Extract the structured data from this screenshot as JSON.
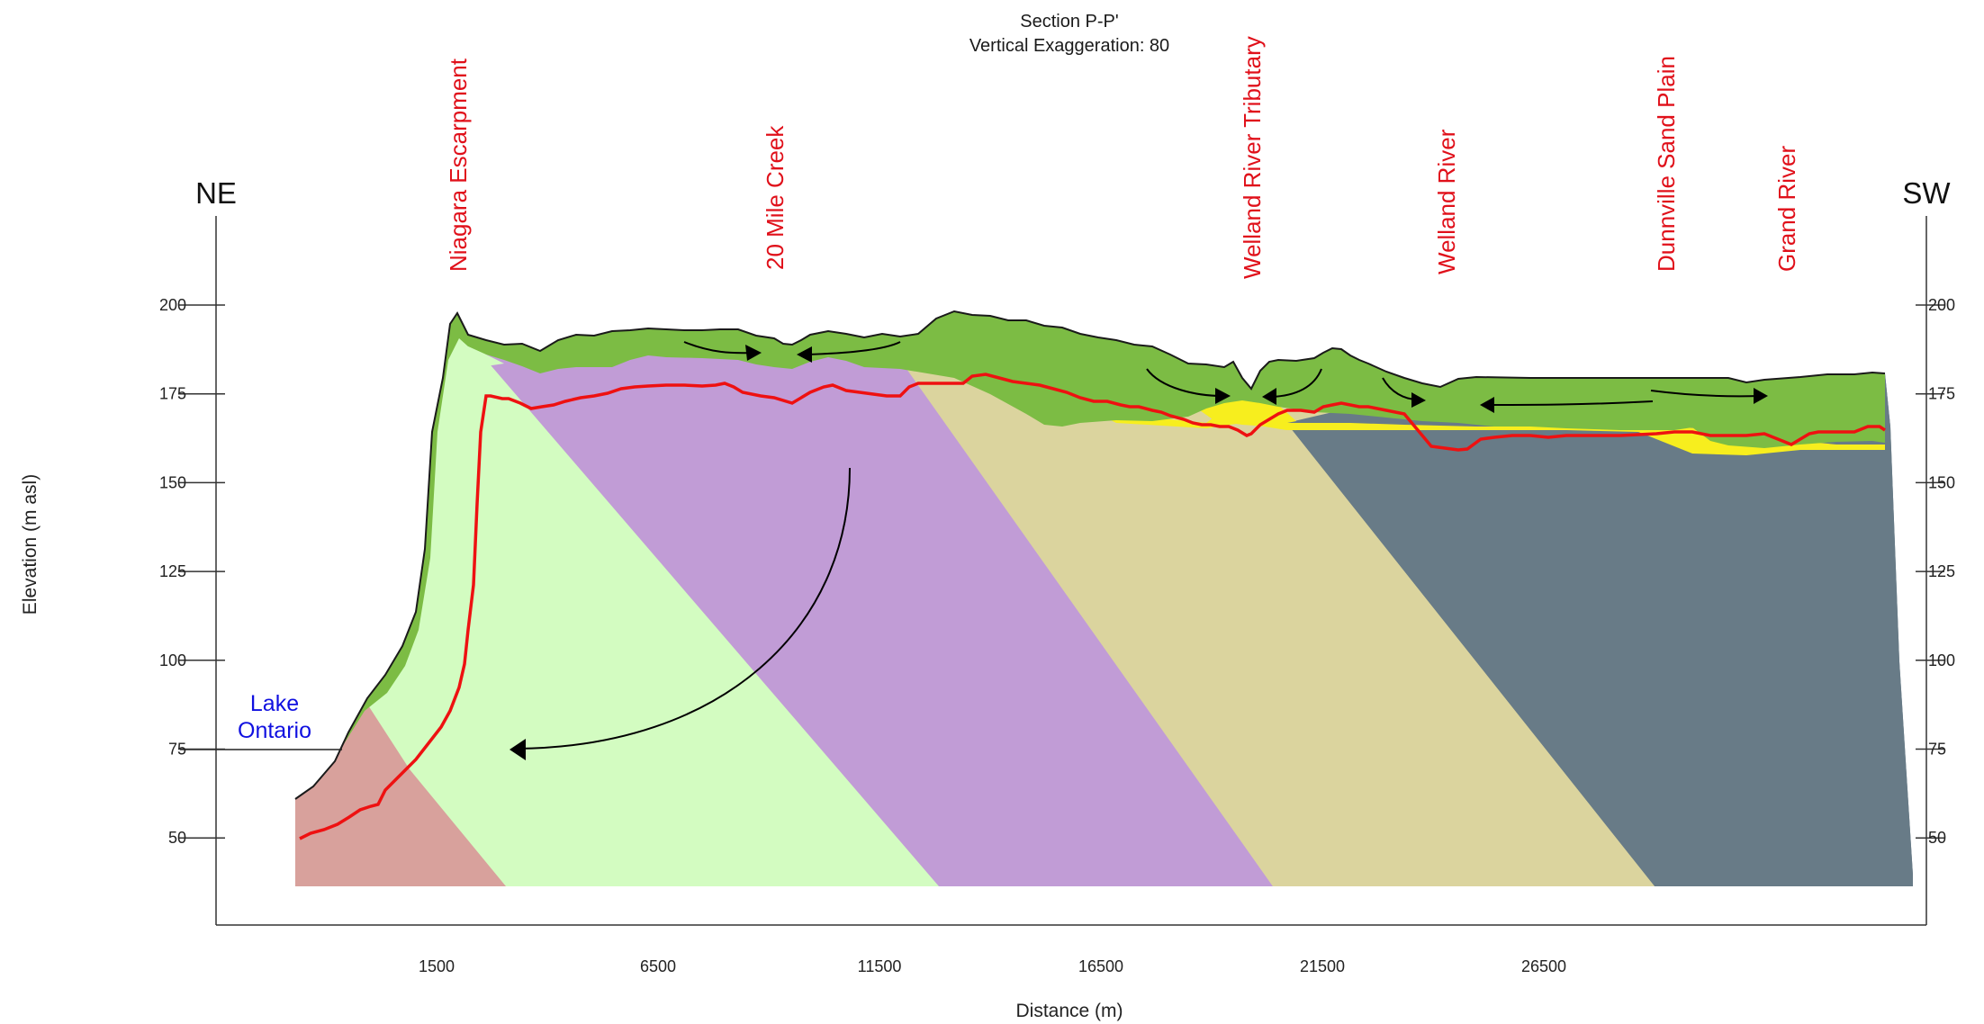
{
  "title": {
    "line1": "Section P-P'",
    "line2": "Vertical Exaggeration: 80"
  },
  "ends": {
    "left": "NE",
    "right": "SW"
  },
  "axes": {
    "y_label": "Elevation (m asl)",
    "x_label": "Distance (m)",
    "y_ticks": [
      "200",
      "175",
      "150",
      "125",
      "100",
      "75",
      "50"
    ],
    "y_ticks_right": [
      "200",
      "175",
      "150",
      "125",
      "100",
      "75",
      "50"
    ],
    "x_ticks": [
      "1500",
      "6500",
      "11500",
      "16500",
      "21500",
      "26500"
    ]
  },
  "features": [
    "Niagara Escarpment",
    "20 Mile Creek",
    "Welland River Tributary",
    "Welland River",
    "Dunnville Sand Plain",
    "Grand River"
  ],
  "lake_label": {
    "line1": "Lake",
    "line2": "Ontario"
  },
  "colors": {
    "surface_green": "#7cbc44",
    "unit_red": "#d8a19c",
    "unit_lightgreen": "#d3fcc1",
    "unit_purple": "#c19cd6",
    "unit_tan": "#dbd49e",
    "unit_slate": "#687b87",
    "sand_yellow": "#f7ee1e",
    "water_table": "#ee1111",
    "feature_label": "#e0101a",
    "lake_label": "#1010e0"
  }
}
